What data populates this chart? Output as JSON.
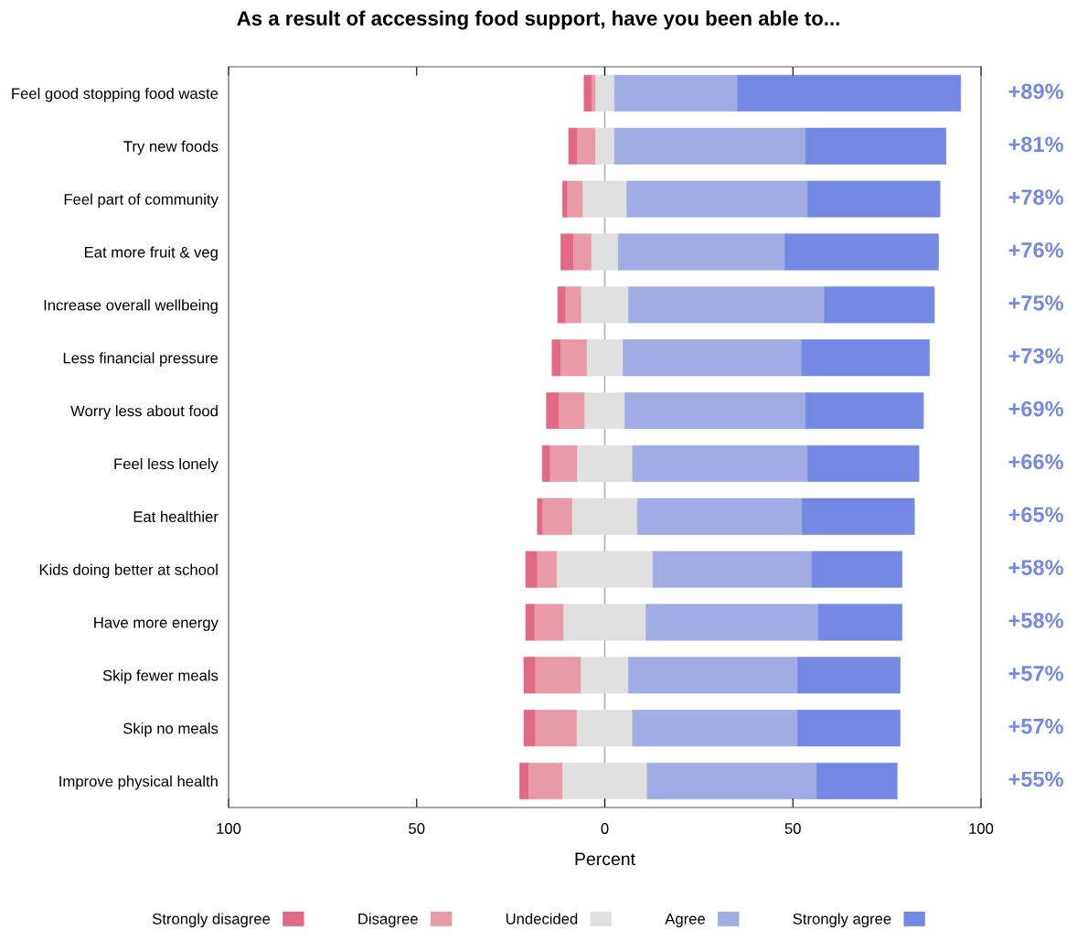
{
  "chart_data": {
    "type": "bar",
    "orientation": "horizontal",
    "title": "As a result of accessing food support, have you been able to...",
    "xlabel": "Percent",
    "categories": [
      "Feel good stopping food waste",
      "Try new foods",
      "Feel part of community",
      "Eat more fruit & veg",
      "Increase overall wellbeing",
      "Less financial pressure",
      "Worry less about food",
      "Feel less lonely",
      "Eat healthier",
      "Kids doing better at school",
      "Have more energy",
      "Skip fewer meals",
      "Skip no meals",
      "Improve physical health"
    ],
    "series": [
      {
        "name": "Strongly disagree",
        "color": "#e06a85",
        "base": [
          -5.5,
          -9.6,
          -11.2,
          -11.7,
          -12.5,
          -14.0,
          -15.5,
          -16.6,
          -17.9,
          -21.0,
          -21.0,
          -21.5,
          -21.5,
          -22.6
        ],
        "values": [
          2.1,
          2.3,
          1.3,
          3.4,
          2.1,
          2.3,
          3.4,
          2.1,
          1.4,
          3.1,
          2.4,
          3.1,
          3.1,
          2.4
        ]
      },
      {
        "name": "Disagree",
        "color": "#e89aa8",
        "base": [
          -3.4,
          -7.3,
          -9.9,
          -8.3,
          -10.4,
          -11.7,
          -12.1,
          -14.5,
          -16.5,
          -17.9,
          -18.6,
          -18.4,
          -18.4,
          -20.2
        ],
        "values": [
          1.0,
          4.9,
          4.1,
          4.8,
          4.2,
          7.0,
          6.8,
          7.2,
          7.9,
          5.2,
          7.7,
          12.1,
          11.0,
          9.0
        ]
      },
      {
        "name": "Undecided",
        "color": "#e0e0e0",
        "base": [
          -2.4,
          -2.4,
          -5.8,
          -3.5,
          -6.2,
          -4.7,
          -5.3,
          -7.3,
          -8.6,
          -12.7,
          -10.9,
          -6.3,
          -7.4,
          -11.2
        ],
        "values": [
          5.0,
          5.0,
          11.7,
          7.1,
          12.5,
          9.6,
          10.6,
          14.7,
          17.3,
          25.5,
          21.9,
          12.6,
          14.8,
          22.5
        ]
      },
      {
        "name": "Agree",
        "color": "#a0ace3",
        "base": [
          2.6,
          2.6,
          5.9,
          3.6,
          6.3,
          4.9,
          5.3,
          7.4,
          8.7,
          12.8,
          11.0,
          6.3,
          7.4,
          11.3
        ],
        "values": [
          32.7,
          50.8,
          48.1,
          44.3,
          52.1,
          47.5,
          48.1,
          46.6,
          43.8,
          42.3,
          45.8,
          45.0,
          43.9,
          45.1
        ]
      },
      {
        "name": "Strongly agree",
        "color": "#7389e4",
        "base": [
          35.3,
          53.4,
          54.0,
          47.9,
          58.4,
          52.4,
          53.4,
          54.0,
          52.5,
          55.1,
          56.8,
          51.3,
          51.3,
          56.4
        ],
        "values": [
          59.3,
          37.3,
          35.1,
          40.8,
          29.2,
          33.9,
          31.3,
          29.5,
          29.8,
          23.9,
          22.2,
          27.2,
          27.2,
          21.3
        ]
      }
    ],
    "annotations": [
      "+89%",
      "+81%",
      "+78%",
      "+76%",
      "+75%",
      "+73%",
      "+69%",
      "+66%",
      "+65%",
      "+58%",
      "+58%",
      "+57%",
      "+57%",
      "+55%"
    ],
    "xlim": [
      -100,
      100
    ],
    "xticks": [
      {
        "value": -100,
        "label": "100"
      },
      {
        "value": -50,
        "label": "50"
      },
      0,
      50,
      100
    ],
    "ref_lines": [
      {
        "axis": "x",
        "value": 0,
        "color": "#b0b0b0"
      }
    ],
    "grid": false,
    "legend": "bottom"
  }
}
